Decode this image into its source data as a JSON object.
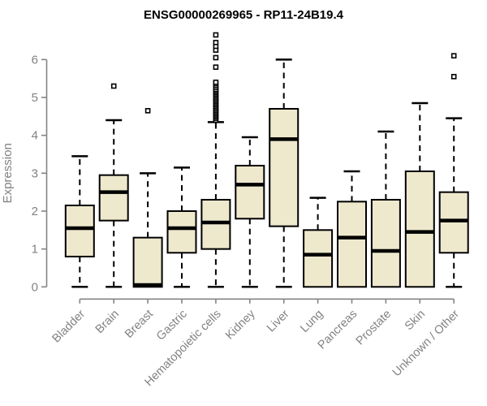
{
  "chart_data": {
    "type": "boxplot",
    "title": "ENSG00000269965 - RP11-24B19.4",
    "xlabel": "",
    "ylabel": "Expression",
    "ylim": [
      0,
      6.7
    ],
    "yticks": [
      0,
      1,
      2,
      3,
      4,
      5,
      6
    ],
    "grid": false,
    "legend": "none",
    "x_label_rotation_deg": 45,
    "categories": [
      "Bladder",
      "Brain",
      "Breast",
      "Gastric",
      "Hematopoietic cells",
      "Kidney",
      "Liver",
      "Lung",
      "Pancreas",
      "Prostate",
      "Skin",
      "Unknown / Other"
    ],
    "series": [
      {
        "label": "Bladder",
        "whislo": 0,
        "q1": 0.8,
        "med": 1.55,
        "q3": 2.15,
        "whishi": 3.45,
        "outliers": []
      },
      {
        "label": "Brain",
        "whislo": 0,
        "q1": 1.75,
        "med": 2.5,
        "q3": 2.95,
        "whishi": 4.4,
        "outliers": [
          5.3
        ]
      },
      {
        "label": "Breast",
        "whislo": 0,
        "q1": 0,
        "med": 0.05,
        "q3": 1.3,
        "whishi": 3.0,
        "outliers": [
          4.65
        ]
      },
      {
        "label": "Gastric",
        "whislo": 0,
        "q1": 0.9,
        "med": 1.55,
        "q3": 2.0,
        "whishi": 3.15,
        "outliers": []
      },
      {
        "label": "Hematopoietic cells",
        "whislo": 0,
        "q1": 1.0,
        "med": 1.7,
        "q3": 2.3,
        "whishi": 4.35,
        "outliers": [
          4.4,
          4.45,
          4.49,
          4.53,
          4.57,
          4.61,
          4.65,
          4.69,
          4.73,
          4.77,
          4.81,
          4.85,
          4.89,
          4.93,
          4.97,
          5.01,
          5.05,
          5.09,
          5.13,
          5.17,
          5.21,
          5.26,
          5.31,
          5.36,
          5.4,
          5.8,
          6.05,
          6.25,
          6.35,
          6.45,
          6.65
        ]
      },
      {
        "label": "Kidney",
        "whislo": 0,
        "q1": 1.8,
        "med": 2.7,
        "q3": 3.2,
        "whishi": 3.95,
        "outliers": []
      },
      {
        "label": "Liver",
        "whislo": 0,
        "q1": 1.6,
        "med": 3.9,
        "q3": 4.7,
        "whishi": 6.0,
        "outliers": []
      },
      {
        "label": "Lung",
        "whislo": 0,
        "q1": 0,
        "med": 0.85,
        "q3": 1.5,
        "whishi": 2.35,
        "outliers": []
      },
      {
        "label": "Pancreas",
        "whislo": 0,
        "q1": 0,
        "med": 1.3,
        "q3": 2.25,
        "whishi": 3.05,
        "outliers": []
      },
      {
        "label": "Prostate",
        "whislo": 0,
        "q1": 0,
        "med": 0.95,
        "q3": 2.3,
        "whishi": 4.1,
        "outliers": []
      },
      {
        "label": "Skin",
        "whislo": 0,
        "q1": 0,
        "med": 1.45,
        "q3": 3.05,
        "whishi": 4.85,
        "outliers": []
      },
      {
        "label": "Unknown / Other",
        "whislo": 0,
        "q1": 0.9,
        "med": 1.75,
        "q3": 2.5,
        "whishi": 4.45,
        "outliers": [
          5.55,
          6.1
        ]
      }
    ],
    "colors": {
      "box_fill": "#EEE8CD",
      "box_stroke": "#000000",
      "median": "#000000",
      "whisker": "#000000",
      "outlier_stroke": "#000000",
      "outlier_fill": "#FFFFFF",
      "axis": "#848484",
      "tick_label": "#828282",
      "title": "#000000",
      "background": "#FFFFFF"
    }
  }
}
